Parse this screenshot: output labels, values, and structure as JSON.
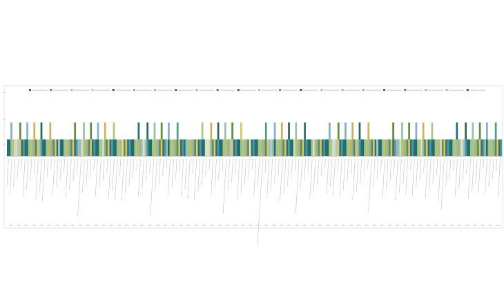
{
  "colors": {
    "palette": [
      "#1f6f8b",
      "#4a9e96",
      "#a8c97f",
      "#e3c565",
      "#2a6b4f",
      "#7fb3c8",
      "#c9b458",
      "#356d7c",
      "#94c4a5",
      "#5e8f3a"
    ],
    "frame": "#e4e4e4",
    "axis": "#d9d9d9",
    "label": "#aaaaaa"
  },
  "chart_data": {
    "type": "bar",
    "stacked": true,
    "title": "",
    "xlabel": "",
    "ylabel": "",
    "grid": false,
    "legend_position": "top",
    "series_count": 22,
    "category_count": 280,
    "ylim": [
      0,
      3
    ],
    "y_ticks": [
      "",
      "",
      ""
    ],
    "value_pattern": [
      1,
      1,
      1,
      2,
      1,
      0,
      1,
      1,
      2,
      1,
      1,
      1,
      0,
      1,
      2,
      1,
      1,
      1,
      1,
      2,
      0,
      1,
      1,
      1
    ],
    "series_color_index": [
      0,
      1,
      2,
      3,
      4,
      5,
      6,
      7,
      8,
      9,
      0,
      3,
      1,
      4,
      2,
      6,
      5,
      7,
      9,
      8,
      2,
      0
    ],
    "top_segment_colors": [
      2,
      3,
      5,
      8,
      6,
      0,
      1,
      9,
      7,
      4,
      2,
      5,
      3,
      8,
      0,
      6,
      1,
      7,
      9,
      4
    ]
  }
}
